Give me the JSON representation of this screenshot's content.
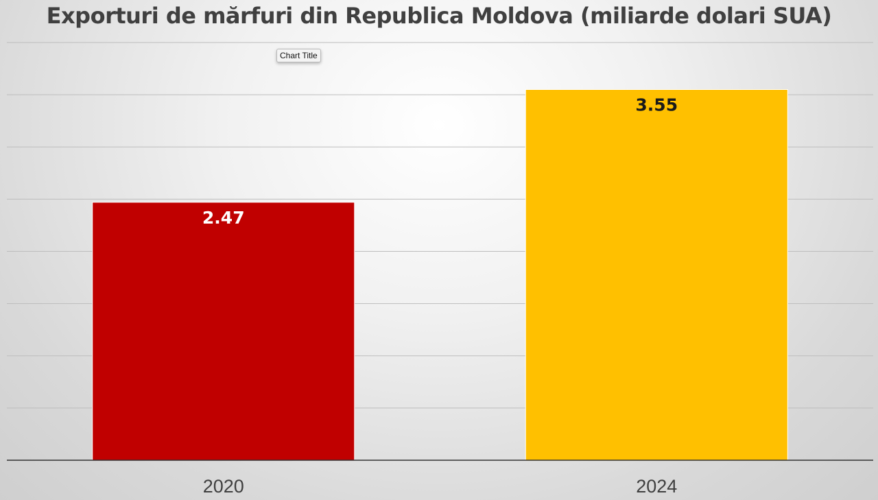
{
  "chart_data": {
    "type": "bar",
    "title": "Exporturi de mărfuri din Republica Moldova (miliarde dolari SUA)",
    "categories": [
      "2020",
      "2024"
    ],
    "values": [
      2.47,
      3.55
    ],
    "data_labels": [
      "2.47",
      "3.55"
    ],
    "bar_colors": [
      "#C00000",
      "#FFC000"
    ],
    "data_label_colors": [
      "#FFFFFF",
      "#1A1A1A"
    ],
    "xlabel": "",
    "ylabel": "",
    "ylim": [
      0,
      4
    ],
    "gridline_step": 0.5,
    "grid": true,
    "legend": "none"
  },
  "tooltip": {
    "text": "Chart Title"
  }
}
